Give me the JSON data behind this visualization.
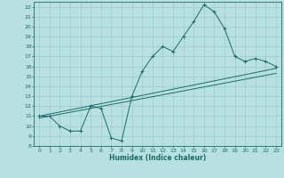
{
  "title": "",
  "xlabel": "Humidex (Indice chaleur)",
  "bg_color": "#b8e0e0",
  "line_color": "#1a6b6b",
  "grid_color": "#90c8c8",
  "xlim": [
    -0.5,
    23.5
  ],
  "ylim": [
    8,
    22.5
  ],
  "xticks": [
    0,
    1,
    2,
    3,
    4,
    5,
    6,
    7,
    8,
    9,
    10,
    11,
    12,
    13,
    14,
    15,
    16,
    17,
    18,
    19,
    20,
    21,
    22,
    23
  ],
  "yticks": [
    8,
    9,
    10,
    11,
    12,
    13,
    14,
    15,
    16,
    17,
    18,
    19,
    20,
    21,
    22
  ],
  "main_x": [
    0,
    1,
    2,
    3,
    4,
    5,
    6,
    7,
    8,
    9,
    10,
    11,
    12,
    13,
    14,
    15,
    16,
    17,
    18,
    19,
    20,
    21,
    22,
    23
  ],
  "main_y": [
    11,
    11,
    10,
    9.5,
    9.5,
    12,
    11.8,
    8.8,
    8.5,
    13,
    15.5,
    17,
    18,
    17.5,
    19,
    20.5,
    22.2,
    21.5,
    19.8,
    17,
    16.5,
    16.8,
    16.5,
    16
  ],
  "trend1_x": [
    0,
    23
  ],
  "trend1_y": [
    11.0,
    15.8
  ],
  "trend2_x": [
    0,
    23
  ],
  "trend2_y": [
    10.8,
    15.3
  ],
  "marker": "+"
}
